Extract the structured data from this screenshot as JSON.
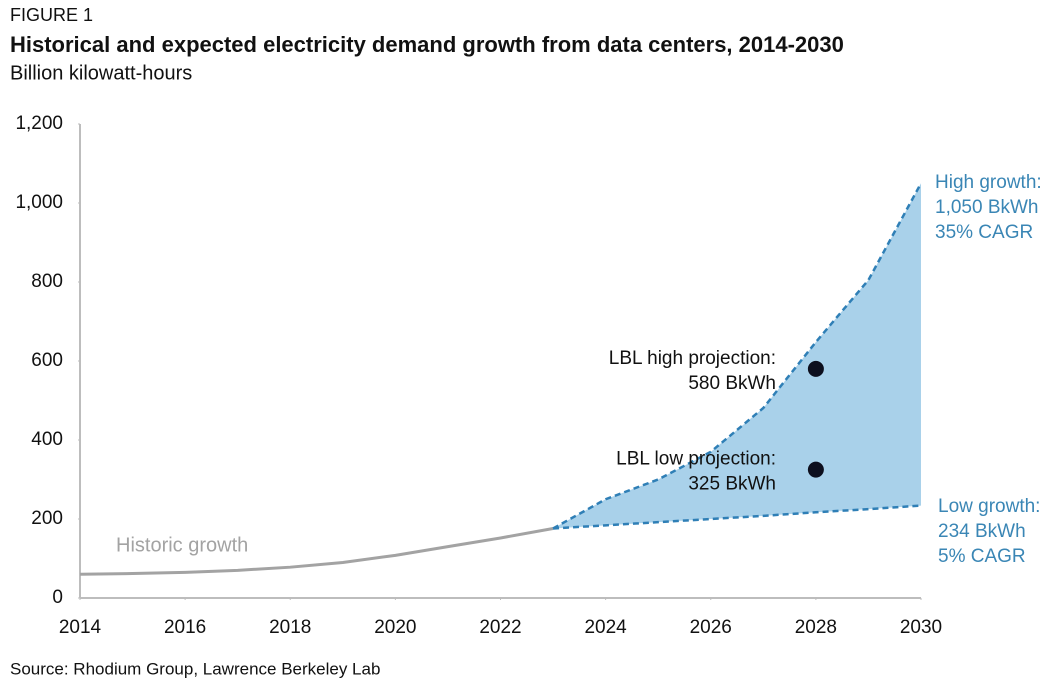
{
  "chart_data": {
    "type": "line",
    "figure_label": "FIGURE 1",
    "title": "Historical and expected electricity demand growth from data centers, 2014-2030",
    "subtitle": "Billion kilowatt-hours",
    "source": "Source: Rhodium Group, Lawrence Berkeley Lab",
    "x": [
      2014,
      2015,
      2016,
      2017,
      2018,
      2019,
      2020,
      2021,
      2022,
      2023,
      2024,
      2025,
      2026,
      2027,
      2028,
      2029,
      2030
    ],
    "series": [
      {
        "name": "Historic growth",
        "color": "#a3a3a3",
        "dashed": false,
        "values": [
          60,
          62,
          65,
          70,
          78,
          90,
          108,
          130,
          152,
          176,
          null,
          null,
          null,
          null,
          null,
          null,
          null
        ]
      },
      {
        "name": "High growth",
        "color": "#2f7fb6",
        "dashed": true,
        "annotation": [
          "High growth:",
          "1,050 BkWh",
          "35% CAGR"
        ],
        "values": [
          null,
          null,
          null,
          null,
          null,
          null,
          null,
          null,
          null,
          176,
          250,
          300,
          370,
          481,
          648,
          805,
          1050
        ]
      },
      {
        "name": "Low growth",
        "color": "#2f7fb6",
        "dashed": true,
        "annotation": [
          "Low growth:",
          "234 BkWh",
          "5% CAGR"
        ],
        "values": [
          null,
          null,
          null,
          null,
          null,
          null,
          null,
          null,
          null,
          176,
          184,
          192,
          200,
          208,
          217,
          225,
          234
        ]
      }
    ],
    "fill_between": {
      "color": "#a9d1ea"
    },
    "points": [
      {
        "x": 2028,
        "y": 580,
        "label": [
          "LBL high projection:",
          "580 BkWh"
        ]
      },
      {
        "x": 2028,
        "y": 325,
        "label": [
          "LBL low projection:",
          "325 BkWh"
        ]
      }
    ],
    "point_color": "#0d0f1e",
    "annotation_color": "#3a86b5",
    "xlim": [
      2014,
      2030
    ],
    "xticks": [
      2014,
      2016,
      2018,
      2020,
      2022,
      2024,
      2026,
      2028,
      2030
    ],
    "ylim": [
      0,
      1200
    ],
    "yticks": [
      0,
      200,
      400,
      600,
      800,
      {
        "value": 1000,
        "label": "1,000"
      },
      {
        "value": 1200,
        "label": "1,200"
      }
    ]
  }
}
